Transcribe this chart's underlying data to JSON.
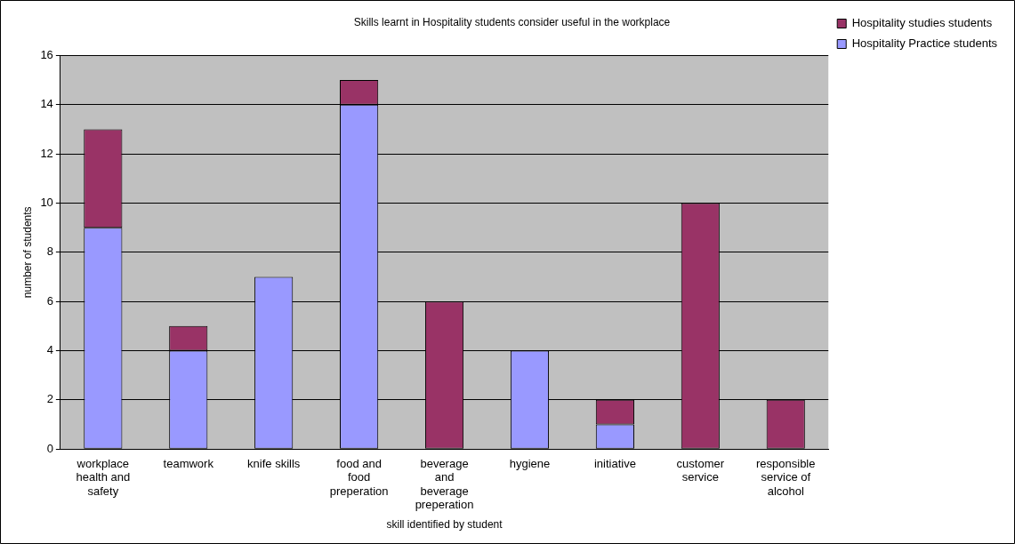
{
  "chart_data": {
    "type": "bar",
    "title": "Skills learnt in Hospitality students consider useful in the workplace",
    "xlabel": "skill identified by student",
    "ylabel": "number of students",
    "categories": [
      "workplace health and safety",
      "teamwork",
      "knife skills",
      "food and food preperation",
      "beverage and beverage preperation",
      "hygiene",
      "initiative",
      "customer service",
      "responsible service of alcohol"
    ],
    "series": [
      {
        "name": "Hospitality Practice students",
        "color": "#9999ff",
        "values": [
          9,
          4,
          7,
          14,
          0,
          4,
          1,
          0,
          0
        ]
      },
      {
        "name": "Hospitality studies students",
        "color": "#993366",
        "values": [
          4,
          1,
          0,
          1,
          6,
          0,
          1,
          10,
          2
        ]
      }
    ],
    "stacked": true,
    "ylim": [
      0,
      16
    ],
    "yticks": [
      0,
      2,
      4,
      6,
      8,
      10,
      12,
      14,
      16
    ],
    "grid": "y",
    "legend": "right"
  }
}
